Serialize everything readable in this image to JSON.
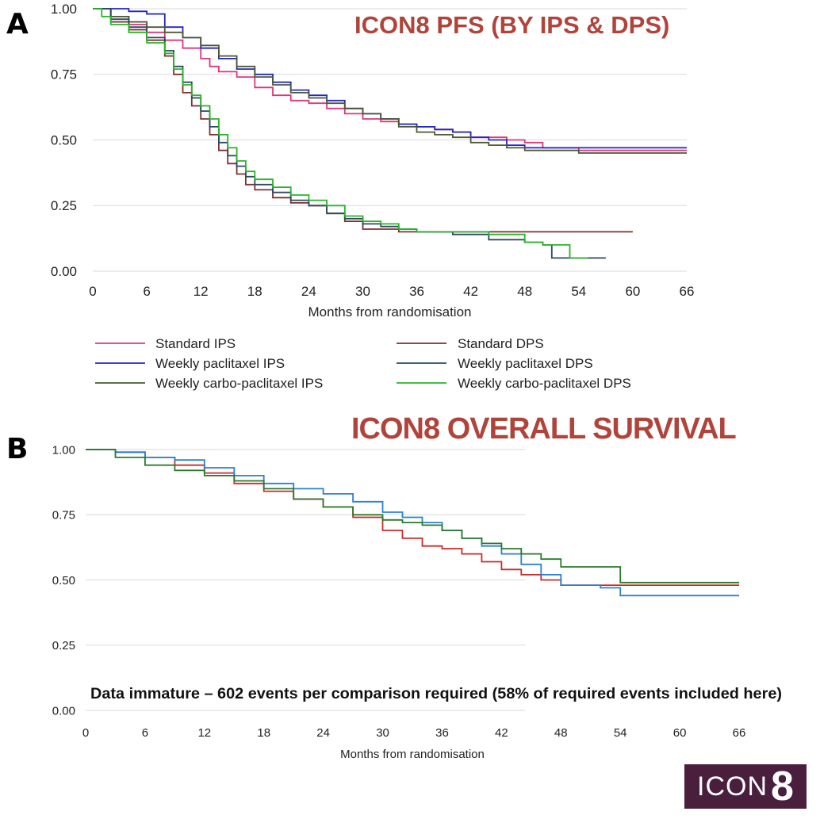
{
  "panel_a": {
    "letter": "A",
    "title": "ICON8 PFS (BY IPS & DPS)"
  },
  "panel_b": {
    "letter": "B",
    "title": "ICON8 OVERALL SURVIVAL",
    "note": "Data immature – 602 events per comparison required (58% of required events included here)"
  },
  "logo": {
    "word": "ICON",
    "num": "8"
  },
  "colors": {
    "title": "#b0443a",
    "grid": "#d9d9d9",
    "logo_bg": "#4a1e3d"
  },
  "chart_data": [
    {
      "type": "line",
      "step": true,
      "title": "ICON8 PFS (BY IPS & DPS)",
      "xlabel": "Months from randomisation",
      "ylabel": "",
      "xlim": [
        0,
        66
      ],
      "ylim": [
        0,
        1
      ],
      "xticks": [
        "0",
        "6",
        "12",
        "18",
        "24",
        "30",
        "36",
        "42",
        "48",
        "54",
        "60",
        "66"
      ],
      "yticks": [
        "0.00",
        "0.25",
        "0.50",
        "0.75",
        "1.00"
      ],
      "grid": true,
      "legend": "bottom",
      "series": [
        {
          "name": "Standard IPS",
          "color": "#e0357a",
          "x": [
            0,
            2,
            4,
            6,
            8,
            10,
            12,
            13,
            14,
            16,
            18,
            20,
            22,
            24,
            26,
            28,
            30,
            32,
            34,
            36,
            38,
            40,
            42,
            44,
            46,
            48,
            50,
            52,
            54,
            56,
            58,
            60,
            62,
            64,
            66
          ],
          "y": [
            1,
            0.97,
            0.94,
            0.91,
            0.88,
            0.85,
            0.81,
            0.78,
            0.76,
            0.74,
            0.7,
            0.67,
            0.65,
            0.64,
            0.62,
            0.6,
            0.58,
            0.57,
            0.56,
            0.55,
            0.54,
            0.53,
            0.51,
            0.51,
            0.5,
            0.49,
            0.47,
            0.47,
            0.46,
            0.46,
            0.46,
            0.46,
            0.46,
            0.46,
            0.46
          ]
        },
        {
          "name": "Weekly paclitaxel IPS",
          "color": "#2424c8",
          "x": [
            0,
            2,
            4,
            5,
            6,
            8,
            10,
            12,
            14,
            16,
            18,
            20,
            22,
            24,
            26,
            28,
            30,
            32,
            34,
            36,
            38,
            40,
            42,
            44,
            46,
            48,
            50,
            52,
            54,
            56,
            58,
            60,
            62,
            64,
            66
          ],
          "y": [
            1,
            1,
            0.99,
            0.99,
            0.98,
            0.93,
            0.89,
            0.85,
            0.81,
            0.77,
            0.75,
            0.72,
            0.69,
            0.67,
            0.65,
            0.62,
            0.6,
            0.58,
            0.56,
            0.55,
            0.54,
            0.53,
            0.51,
            0.5,
            0.48,
            0.47,
            0.47,
            0.47,
            0.47,
            0.47,
            0.47,
            0.47,
            0.47,
            0.47,
            0.47
          ]
        },
        {
          "name": "Weekly carbo-paclitaxel IPS",
          "color": "#4a5a32",
          "x": [
            0,
            2,
            4,
            6,
            8,
            10,
            12,
            14,
            16,
            18,
            20,
            22,
            24,
            26,
            28,
            30,
            32,
            34,
            36,
            38,
            40,
            42,
            44,
            46,
            48,
            50,
            52,
            54,
            56,
            58,
            60,
            62,
            64,
            66
          ],
          "y": [
            1,
            0.97,
            0.95,
            0.93,
            0.91,
            0.89,
            0.86,
            0.82,
            0.78,
            0.74,
            0.71,
            0.68,
            0.66,
            0.64,
            0.62,
            0.6,
            0.58,
            0.55,
            0.53,
            0.52,
            0.51,
            0.49,
            0.48,
            0.47,
            0.46,
            0.46,
            0.46,
            0.45,
            0.45,
            0.45,
            0.45,
            0.45,
            0.45,
            0.45
          ]
        },
        {
          "name": "Standard DPS",
          "color": "#7d3030",
          "x": [
            0,
            2,
            4,
            6,
            8,
            9,
            10,
            11,
            12,
            13,
            14,
            15,
            16,
            17,
            18,
            20,
            22,
            24,
            26,
            28,
            30,
            32,
            34,
            36,
            40,
            44,
            48,
            52,
            56,
            60
          ],
          "y": [
            1,
            0.95,
            0.92,
            0.88,
            0.82,
            0.75,
            0.68,
            0.63,
            0.58,
            0.52,
            0.46,
            0.41,
            0.37,
            0.33,
            0.31,
            0.28,
            0.26,
            0.25,
            0.22,
            0.19,
            0.16,
            0.16,
            0.15,
            0.15,
            0.15,
            0.15,
            0.15,
            0.15,
            0.15,
            0.15
          ]
        },
        {
          "name": "Weekly paclitaxel DPS",
          "color": "#2a4a60",
          "x": [
            0,
            2,
            4,
            6,
            8,
            9,
            10,
            11,
            12,
            13,
            14,
            15,
            16,
            17,
            18,
            20,
            22,
            24,
            26,
            28,
            30,
            32,
            34,
            36,
            40,
            44,
            48,
            50,
            51,
            54,
            57
          ],
          "y": [
            1,
            0.96,
            0.93,
            0.89,
            0.84,
            0.78,
            0.72,
            0.66,
            0.61,
            0.55,
            0.49,
            0.44,
            0.4,
            0.36,
            0.33,
            0.3,
            0.27,
            0.25,
            0.22,
            0.2,
            0.18,
            0.17,
            0.16,
            0.15,
            0.14,
            0.12,
            0.11,
            0.1,
            0.05,
            0.05,
            0.05
          ]
        },
        {
          "name": "Weekly carbo-paclitaxel DPS",
          "color": "#28b428",
          "x": [
            0,
            1,
            2,
            4,
            6,
            8,
            9,
            10,
            11,
            12,
            13,
            14,
            15,
            16,
            17,
            18,
            20,
            22,
            24,
            26,
            28,
            30,
            32,
            34,
            36,
            40,
            44,
            48,
            50,
            52,
            53,
            54,
            55
          ],
          "y": [
            1,
            0.97,
            0.94,
            0.91,
            0.87,
            0.83,
            0.77,
            0.71,
            0.67,
            0.63,
            0.58,
            0.52,
            0.47,
            0.42,
            0.38,
            0.35,
            0.32,
            0.29,
            0.27,
            0.25,
            0.21,
            0.19,
            0.18,
            0.16,
            0.15,
            0.15,
            0.14,
            0.11,
            0.1,
            0.1,
            0.05,
            0.05,
            0.05
          ]
        }
      ]
    },
    {
      "type": "line",
      "step": true,
      "title": "ICON8 OVERALL SURVIVAL",
      "xlabel": "Months from randomisation",
      "ylabel": "",
      "xlim": [
        0,
        66
      ],
      "ylim": [
        0,
        1
      ],
      "xticks": [
        "0",
        "6",
        "12",
        "18",
        "24",
        "30",
        "36",
        "42",
        "48",
        "54",
        "60",
        "66"
      ],
      "yticks": [
        "0.00",
        "0.25",
        "0.50",
        "0.75",
        "1.00"
      ],
      "grid": true,
      "annotation": "Data immature – 602 events per comparison required (58% of required events included here)",
      "series": [
        {
          "color": "#cc2a2a",
          "x": [
            0,
            3,
            6,
            9,
            12,
            15,
            18,
            21,
            24,
            27,
            30,
            32,
            34,
            36,
            38,
            40,
            42,
            44,
            46,
            48,
            50,
            52,
            54,
            56,
            58,
            60,
            62,
            64,
            66
          ],
          "y": [
            1,
            0.99,
            0.97,
            0.94,
            0.91,
            0.87,
            0.84,
            0.81,
            0.78,
            0.74,
            0.69,
            0.66,
            0.63,
            0.62,
            0.6,
            0.57,
            0.54,
            0.52,
            0.5,
            0.48,
            0.48,
            0.48,
            0.48,
            0.48,
            0.48,
            0.48,
            0.48,
            0.48,
            0.48
          ]
        },
        {
          "color": "#2a80d8",
          "x": [
            0,
            3,
            6,
            9,
            12,
            15,
            18,
            21,
            24,
            27,
            30,
            32,
            34,
            36,
            38,
            40,
            42,
            44,
            46,
            48,
            50,
            52,
            54,
            56,
            58,
            60,
            62,
            64,
            66
          ],
          "y": [
            1,
            0.99,
            0.97,
            0.96,
            0.93,
            0.9,
            0.87,
            0.85,
            0.83,
            0.8,
            0.76,
            0.74,
            0.72,
            0.69,
            0.66,
            0.63,
            0.6,
            0.56,
            0.52,
            0.48,
            0.48,
            0.47,
            0.44,
            0.44,
            0.44,
            0.44,
            0.44,
            0.44,
            0.44
          ]
        },
        {
          "color": "#2a7a2a",
          "x": [
            0,
            3,
            6,
            9,
            12,
            15,
            18,
            21,
            24,
            27,
            30,
            32,
            34,
            36,
            38,
            40,
            42,
            44,
            46,
            48,
            50,
            52,
            54,
            56,
            58,
            60,
            62,
            64,
            66
          ],
          "y": [
            1,
            0.97,
            0.94,
            0.92,
            0.9,
            0.88,
            0.85,
            0.81,
            0.78,
            0.75,
            0.73,
            0.72,
            0.71,
            0.69,
            0.66,
            0.64,
            0.62,
            0.6,
            0.58,
            0.55,
            0.55,
            0.55,
            0.49,
            0.49,
            0.49,
            0.49,
            0.49,
            0.49,
            0.49
          ]
        }
      ]
    }
  ]
}
